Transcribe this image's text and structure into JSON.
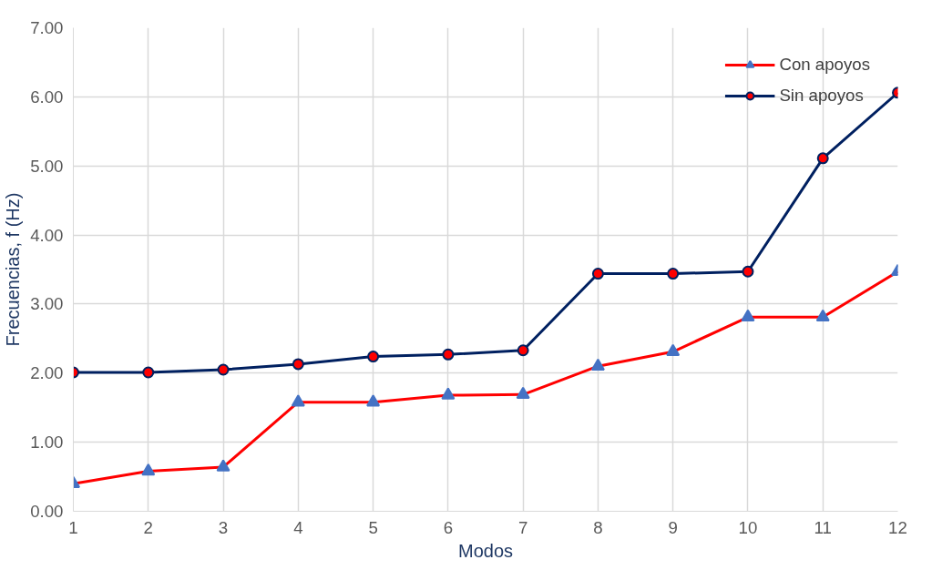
{
  "chart_data": {
    "type": "line",
    "xlabel": "Modos",
    "ylabel": "Frecuencias, f (Hz)",
    "x": [
      1,
      2,
      3,
      4,
      5,
      6,
      7,
      8,
      9,
      10,
      11,
      12
    ],
    "xlim": [
      1,
      12
    ],
    "xticks": [
      1,
      2,
      3,
      4,
      5,
      6,
      7,
      8,
      9,
      10,
      11,
      12
    ],
    "ylim": [
      0,
      7
    ],
    "yticks": [
      {
        "value": 0,
        "label": "0.00"
      },
      {
        "value": 1,
        "label": "1.00"
      },
      {
        "value": 2,
        "label": "2.00"
      },
      {
        "value": 3,
        "label": "3.00"
      },
      {
        "value": 4,
        "label": "4.00"
      },
      {
        "value": 5,
        "label": "5.00"
      },
      {
        "value": 6,
        "label": "6.00"
      },
      {
        "value": 7,
        "label": "7.00"
      }
    ],
    "grid": true,
    "legend": "top right",
    "line_style": "solid",
    "series": [
      {
        "name": "Con apoyos",
        "color": "#ff0000",
        "marker": "triangle",
        "colors": [
          "#4472c4",
          "#4472c4",
          "#4472c4",
          "#4472c4",
          "#4472c4",
          "#4472c4",
          "#4472c4",
          "#4472c4",
          "#4472c4",
          "#4472c4",
          "#4472c4",
          "#4472c4"
        ],
        "values": [
          0.4,
          0.58,
          0.64,
          1.58,
          1.58,
          1.68,
          1.69,
          2.1,
          2.31,
          2.81,
          2.81,
          3.47
        ]
      },
      {
        "name": "Sin apoyos",
        "color": "#002060",
        "marker": "circle",
        "colors": [
          "#ff0000",
          "#ff0000",
          "#ff0000",
          "#ff0000",
          "#ff0000",
          "#ff0000",
          "#ff0000",
          "#ff0000",
          "#ff0000",
          "#ff0000",
          "#ff0000",
          "#ff0000"
        ],
        "values": [
          2.01,
          2.01,
          2.05,
          2.13,
          2.24,
          2.27,
          2.33,
          3.44,
          3.44,
          3.47,
          5.11,
          6.06
        ]
      }
    ]
  }
}
